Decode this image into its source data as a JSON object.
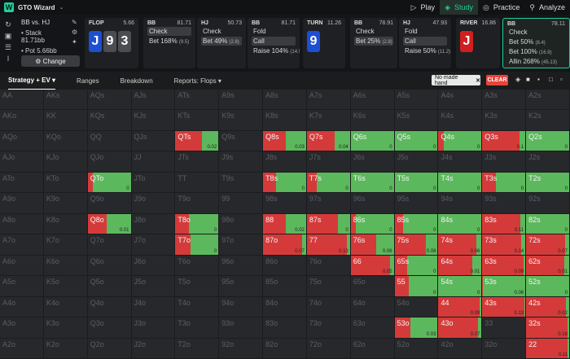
{
  "app": {
    "name": "GTO Wizard"
  },
  "nav": [
    {
      "label": "Play",
      "icon": "play-icon",
      "active": false
    },
    {
      "label": "Study",
      "icon": "study-icon",
      "active": true
    },
    {
      "label": "Practice",
      "icon": "practice-icon",
      "active": false
    },
    {
      "label": "Analyze",
      "icon": "analyze-icon",
      "active": false
    }
  ],
  "spot": {
    "title": "BB vs. HJ",
    "stack": "• Stack 81.71bb",
    "pot": "• Pot 5.66bb",
    "change_label": "⚙ Change"
  },
  "segments": [
    {
      "name": "FLOP",
      "amount": "5.66",
      "cards": [
        "J",
        "9",
        "3"
      ],
      "card_colors": [
        "b",
        "g",
        "g"
      ]
    },
    {
      "name": "BB",
      "amount": "81.71",
      "actions": [
        {
          "t": "Check",
          "sel": true,
          "sm": ""
        },
        {
          "t": "Bet 168%",
          "sel": false,
          "sm": "(9.5)"
        }
      ]
    },
    {
      "name": "HJ",
      "amount": "50.73",
      "actions": [
        {
          "t": "Check",
          "sel": false,
          "sm": ""
        },
        {
          "t": "Bet 49%",
          "sel": true,
          "sm": "(2.8)"
        }
      ]
    },
    {
      "name": "BB",
      "amount": "81.71",
      "actions": [
        {
          "t": "Fold",
          "sel": false,
          "sm": ""
        },
        {
          "t": "Call",
          "sel": true,
          "sm": ""
        },
        {
          "t": "Raise 104%",
          "sel": false,
          "sm": "(14.5)"
        }
      ]
    },
    {
      "name": "TURN",
      "amount": "11.26",
      "cards": [
        "9"
      ],
      "card_colors": [
        "b"
      ]
    },
    {
      "name": "BB",
      "amount": "78.91",
      "actions": [
        {
          "t": "Check",
          "sel": false,
          "sm": ""
        },
        {
          "t": "Bet 25%",
          "sel": true,
          "sm": "(2.8)"
        }
      ]
    },
    {
      "name": "HJ",
      "amount": "47.93",
      "actions": [
        {
          "t": "Fold",
          "sel": false,
          "sm": ""
        },
        {
          "t": "Call",
          "sel": true,
          "sm": ""
        },
        {
          "t": "Raise 50%",
          "sel": false,
          "sm": "(11.2)"
        }
      ]
    },
    {
      "name": "RIVER",
      "amount": "16.86",
      "cards": [
        "J"
      ],
      "card_colors": [
        "r"
      ]
    },
    {
      "name": "BB",
      "amount": "78.11",
      "actions": [
        {
          "t": "Check",
          "sel": false,
          "sm": ""
        },
        {
          "t": "Bet 50%",
          "sel": false,
          "sm": "(8.4)"
        },
        {
          "t": "Bet 100%",
          "sel": false,
          "sm": "(16.9)"
        },
        {
          "t": "Allin 268%",
          "sel": false,
          "sm": "(45.13)"
        }
      ]
    }
  ],
  "strategy_tabs": [
    "Strategy + EV ▾",
    "Ranges",
    "Breakdown",
    "Reports: Flops ▾"
  ],
  "filter_chip": "No made hand",
  "clear_label": "CLEAR",
  "colors": {
    "check": "#5cb85c",
    "bet": "#d53a3a",
    "accent": "#1fcf9b"
  },
  "grid": {
    "rows": [
      [
        "AA",
        "AKs",
        "AQs",
        "AJs",
        "ATs",
        "A9s",
        "A8s",
        "A7s",
        "A6s",
        "A5s",
        "A4s",
        "A3s",
        "A2s"
      ],
      [
        "AKo",
        "KK",
        "KQs",
        "KJs",
        "KTs",
        "K9s",
        "K8s",
        "K7s",
        "K6s",
        "K5s",
        "K4s",
        "K3s",
        "K2s"
      ],
      [
        "AQo",
        "KQo",
        "QQ",
        "QJs",
        "QTs",
        "Q9s",
        "Q8s",
        "Q7s",
        "Q6s",
        "Q5s",
        "Q4s",
        "Q3s",
        "Q2s"
      ],
      [
        "AJo",
        "KJo",
        "QJo",
        "JJ",
        "JTs",
        "J9s",
        "J8s",
        "J7s",
        "J6s",
        "J5s",
        "J4s",
        "J3s",
        "J2s"
      ],
      [
        "ATo",
        "KTo",
        "QTo",
        "JTo",
        "TT",
        "T9s",
        "T8s",
        "T7s",
        "T6s",
        "T5s",
        "T4s",
        "T3s",
        "T2s"
      ],
      [
        "A9o",
        "K9o",
        "Q9o",
        "J9o",
        "T9o",
        "99",
        "98s",
        "97s",
        "96s",
        "95s",
        "94s",
        "93s",
        "92s"
      ],
      [
        "A8o",
        "K8o",
        "Q8o",
        "J8o",
        "T8o",
        "98o",
        "88",
        "87s",
        "86s",
        "85s",
        "84s",
        "83s",
        "82s"
      ],
      [
        "A7o",
        "K7o",
        "Q7o",
        "J7o",
        "T7o",
        "97o",
        "87o",
        "77",
        "76s",
        "75s",
        "74s",
        "73s",
        "72s"
      ],
      [
        "A6o",
        "K6o",
        "Q6o",
        "J6o",
        "T6o",
        "96o",
        "86o",
        "76o",
        "66",
        "65s",
        "64s",
        "63s",
        "62s"
      ],
      [
        "A5o",
        "K5o",
        "Q5o",
        "J5o",
        "T5o",
        "95o",
        "85o",
        "75o",
        "65o",
        "55",
        "54s",
        "53s",
        "52s"
      ],
      [
        "A4o",
        "K4o",
        "Q4o",
        "J4o",
        "T4o",
        "94o",
        "84o",
        "74o",
        "64o",
        "54o",
        "44",
        "43s",
        "42s"
      ],
      [
        "A3o",
        "K3o",
        "Q3o",
        "J3o",
        "T3o",
        "93o",
        "83o",
        "73o",
        "63o",
        "53o",
        "43o",
        "33",
        "32s"
      ],
      [
        "A2o",
        "K2o",
        "Q2o",
        "J2o",
        "T2o",
        "92o",
        "82o",
        "72o",
        "62o",
        "52o",
        "42o",
        "32o",
        "22"
      ]
    ],
    "active": {
      "QTs": {
        "bet": 0.62,
        "ev": "0.02"
      },
      "Q8s": {
        "bet": 0.52,
        "ev": "0.03"
      },
      "Q7s": {
        "bet": 0.64,
        "ev": "0.04"
      },
      "Q6s": {
        "bet": 0.0,
        "ev": "0"
      },
      "Q5s": {
        "bet": 0.0,
        "ev": "0"
      },
      "Q4s": {
        "bet": 0.12,
        "ev": "0"
      },
      "Q3s": {
        "bet": 0.86,
        "ev": "0.1"
      },
      "Q2s": {
        "bet": 0.0,
        "ev": "0"
      },
      "QTo": {
        "bet": 0.12,
        "ev": "0"
      },
      "T8s": {
        "bet": 0.3,
        "ev": "0"
      },
      "T7s": {
        "bet": 0.22,
        "ev": "0"
      },
      "T6s": {
        "bet": 0.0,
        "ev": "0"
      },
      "T5s": {
        "bet": 0.0,
        "ev": "0"
      },
      "T4s": {
        "bet": 0.0,
        "ev": "0"
      },
      "T3s": {
        "bet": 0.32,
        "ev": "0"
      },
      "T2s": {
        "bet": 0.0,
        "ev": "0"
      },
      "Q8o": {
        "bet": 0.45,
        "ev": "0.01"
      },
      "T8o": {
        "bet": 0.32,
        "ev": "0"
      },
      "88": {
        "bet": 0.52,
        "ev": "0.02"
      },
      "87s": {
        "bet": 0.72,
        "ev": "0"
      },
      "86s": {
        "bet": 0.12,
        "ev": "0"
      },
      "85s": {
        "bet": 0.2,
        "ev": "0"
      },
      "84s": {
        "bet": 0.0,
        "ev": "0"
      },
      "83s": {
        "bet": 0.88,
        "ev": "0.11"
      },
      "82s": {
        "bet": 0.0,
        "ev": "0"
      },
      "T7o": {
        "bet": 0.35,
        "ev": "0"
      },
      "87o": {
        "bet": 0.9,
        "ev": "0.07"
      },
      "77": {
        "bet": 0.92,
        "ev": "0.13"
      },
      "76s": {
        "bet": 0.6,
        "ev": "0.06"
      },
      "75s": {
        "bet": 0.72,
        "ev": "0.08"
      },
      "74s": {
        "bet": 0.88,
        "ev": "0.06"
      },
      "73s": {
        "bet": 0.9,
        "ev": "0.14"
      },
      "72s": {
        "bet": 0.9,
        "ev": "0.07"
      },
      "66": {
        "bet": 0.92,
        "ev": "0.05"
      },
      "65s": {
        "bet": 0.3,
        "ev": "0"
      },
      "64s": {
        "bet": 0.78,
        "ev": "0.01"
      },
      "63s": {
        "bet": 0.96,
        "ev": "0.09"
      },
      "62s": {
        "bet": 0.88,
        "ev": "0.01"
      },
      "55": {
        "bet": 0.32,
        "ev": "0"
      },
      "54s": {
        "bet": 0.0,
        "ev": "0"
      },
      "53s": {
        "bet": 0.02,
        "ev": "0.06"
      },
      "52s": {
        "bet": 0.0,
        "ev": "0"
      },
      "44": {
        "bet": 0.96,
        "ev": "0.09"
      },
      "43s": {
        "bet": 0.97,
        "ev": "0.13"
      },
      "42s": {
        "bet": 0.92,
        "ev": "0.02"
      },
      "53o": {
        "bet": 0.36,
        "ev": "0.03"
      },
      "43o": {
        "bet": 0.92,
        "ev": "0.07"
      },
      "32s": {
        "bet": 0.96,
        "ev": "0.18"
      },
      "22": {
        "bet": 0.96,
        "ev": "0.11"
      }
    }
  }
}
